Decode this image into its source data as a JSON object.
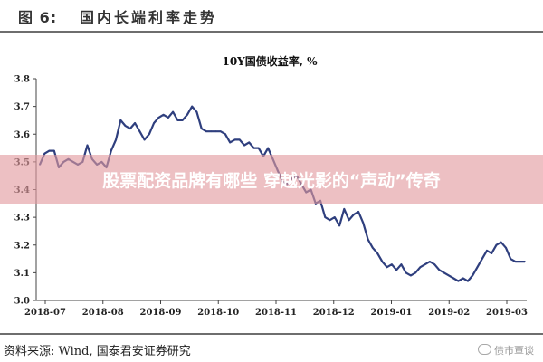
{
  "figure": {
    "label": "图 6:",
    "title": "国内长端利率走势"
  },
  "banner": {
    "text": "股票配资品牌有哪些 穿越光影的“声动”传奇"
  },
  "footer": {
    "source": "资料来源:  Wind,  国泰君安证券研究",
    "watermark": "债市覃谈"
  },
  "chart_data": {
    "type": "line",
    "title": "10Y国债收益率,  %",
    "xlabel": "",
    "ylabel": "",
    "ylim": [
      3.0,
      3.8
    ],
    "yticks": [
      3.0,
      3.1,
      3.2,
      3.3,
      3.4,
      3.5,
      3.6,
      3.7,
      3.8
    ],
    "x_tick_labels": [
      "2018-07",
      "2018-08",
      "2018-09",
      "2018-10",
      "2018-11",
      "2018-12",
      "2019-01",
      "2019-02",
      "2019-03"
    ],
    "grid": false,
    "legend": false,
    "series_color": "#2f3f7e",
    "series": [
      {
        "values": [
          3.49,
          3.53,
          3.54,
          3.54,
          3.48,
          3.5,
          3.51,
          3.5,
          3.49,
          3.5,
          3.56,
          3.51,
          3.49,
          3.5,
          3.48,
          3.54,
          3.58,
          3.65,
          3.63,
          3.62,
          3.64,
          3.61,
          3.58,
          3.6,
          3.64,
          3.66,
          3.67,
          3.66,
          3.68,
          3.65,
          3.65,
          3.67,
          3.7,
          3.68,
          3.62,
          3.61,
          3.61,
          3.61,
          3.61,
          3.6,
          3.57,
          3.58,
          3.58,
          3.56,
          3.57,
          3.55,
          3.55,
          3.52,
          3.55,
          3.51,
          3.47,
          3.43,
          3.42,
          3.44,
          3.45,
          3.42,
          3.39,
          3.4,
          3.35,
          3.36,
          3.3,
          3.29,
          3.3,
          3.27,
          3.33,
          3.29,
          3.31,
          3.32,
          3.28,
          3.22,
          3.19,
          3.17,
          3.14,
          3.12,
          3.13,
          3.11,
          3.13,
          3.1,
          3.09,
          3.1,
          3.12,
          3.13,
          3.14,
          3.13,
          3.11,
          3.1,
          3.09,
          3.08,
          3.07,
          3.08,
          3.07,
          3.09,
          3.12,
          3.15,
          3.18,
          3.17,
          3.2,
          3.21,
          3.19,
          3.15,
          3.14,
          3.14,
          3.14
        ]
      }
    ]
  }
}
